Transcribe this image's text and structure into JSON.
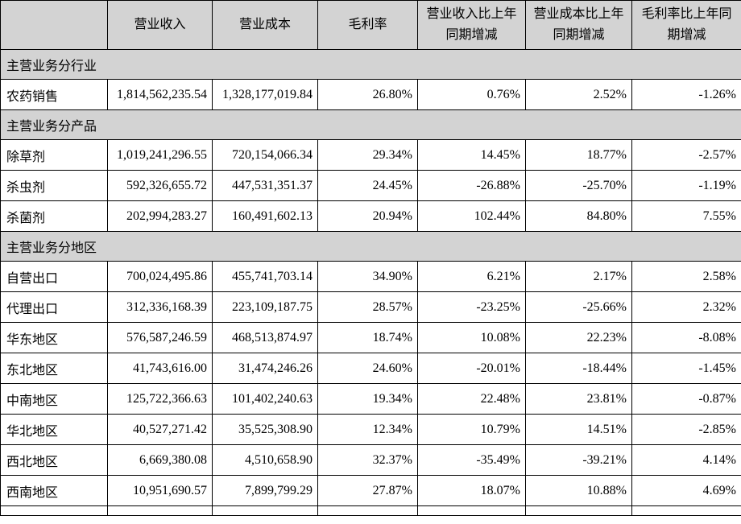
{
  "colors": {
    "header_bg": "#d3d3d3",
    "row_bg": "#ffffff",
    "border": "#000000",
    "text": "#000000"
  },
  "table": {
    "columns": [
      "",
      "营业收入",
      "营业成本",
      "毛利率",
      "营业收入比上年\n同期增减",
      "营业成本比上年\n同期增减",
      "毛利率比上年同\n期增减"
    ],
    "sections": [
      {
        "title": "主营业务分行业",
        "rows": [
          {
            "label": "农药销售",
            "values": [
              "1,814,562,235.54",
              "1,328,177,019.84",
              "26.80%",
              "0.76%",
              "2.52%",
              "-1.26%"
            ]
          }
        ]
      },
      {
        "title": "主营业务分产品",
        "rows": [
          {
            "label": "除草剂",
            "values": [
              "1,019,241,296.55",
              "720,154,066.34",
              "29.34%",
              "14.45%",
              "18.77%",
              "-2.57%"
            ]
          },
          {
            "label": "杀虫剂",
            "values": [
              "592,326,655.72",
              "447,531,351.37",
              "24.45%",
              "-26.88%",
              "-25.70%",
              "-1.19%"
            ]
          },
          {
            "label": "杀菌剂",
            "values": [
              "202,994,283.27",
              "160,491,602.13",
              "20.94%",
              "102.44%",
              "84.80%",
              "7.55%"
            ]
          }
        ]
      },
      {
        "title": "主营业务分地区",
        "rows": [
          {
            "label": "自营出口",
            "values": [
              "700,024,495.86",
              "455,741,703.14",
              "34.90%",
              "6.21%",
              "2.17%",
              "2.58%"
            ]
          },
          {
            "label": "代理出口",
            "values": [
              "312,336,168.39",
              "223,109,187.75",
              "28.57%",
              "-23.25%",
              "-25.66%",
              "2.32%"
            ]
          },
          {
            "label": "华东地区",
            "values": [
              "576,587,246.59",
              "468,513,874.97",
              "18.74%",
              "10.08%",
              "22.23%",
              "-8.08%"
            ]
          },
          {
            "label": "东北地区",
            "values": [
              "41,743,616.00",
              "31,474,246.26",
              "24.60%",
              "-20.01%",
              "-18.44%",
              "-1.45%"
            ]
          },
          {
            "label": "中南地区",
            "values": [
              "125,722,366.63",
              "101,402,240.63",
              "19.34%",
              "22.48%",
              "23.81%",
              "-0.87%"
            ]
          },
          {
            "label": "华北地区",
            "values": [
              "40,527,271.42",
              "35,525,308.90",
              "12.34%",
              "10.79%",
              "14.51%",
              "-2.85%"
            ]
          },
          {
            "label": "西北地区",
            "values": [
              "6,669,380.08",
              "4,510,658.90",
              "32.37%",
              "-35.49%",
              "-39.21%",
              "4.14%"
            ]
          },
          {
            "label": "西南地区",
            "values": [
              "10,951,690.57",
              "7,899,799.29",
              "27.87%",
              "18.07%",
              "10.88%",
              "4.69%"
            ]
          }
        ]
      }
    ]
  }
}
